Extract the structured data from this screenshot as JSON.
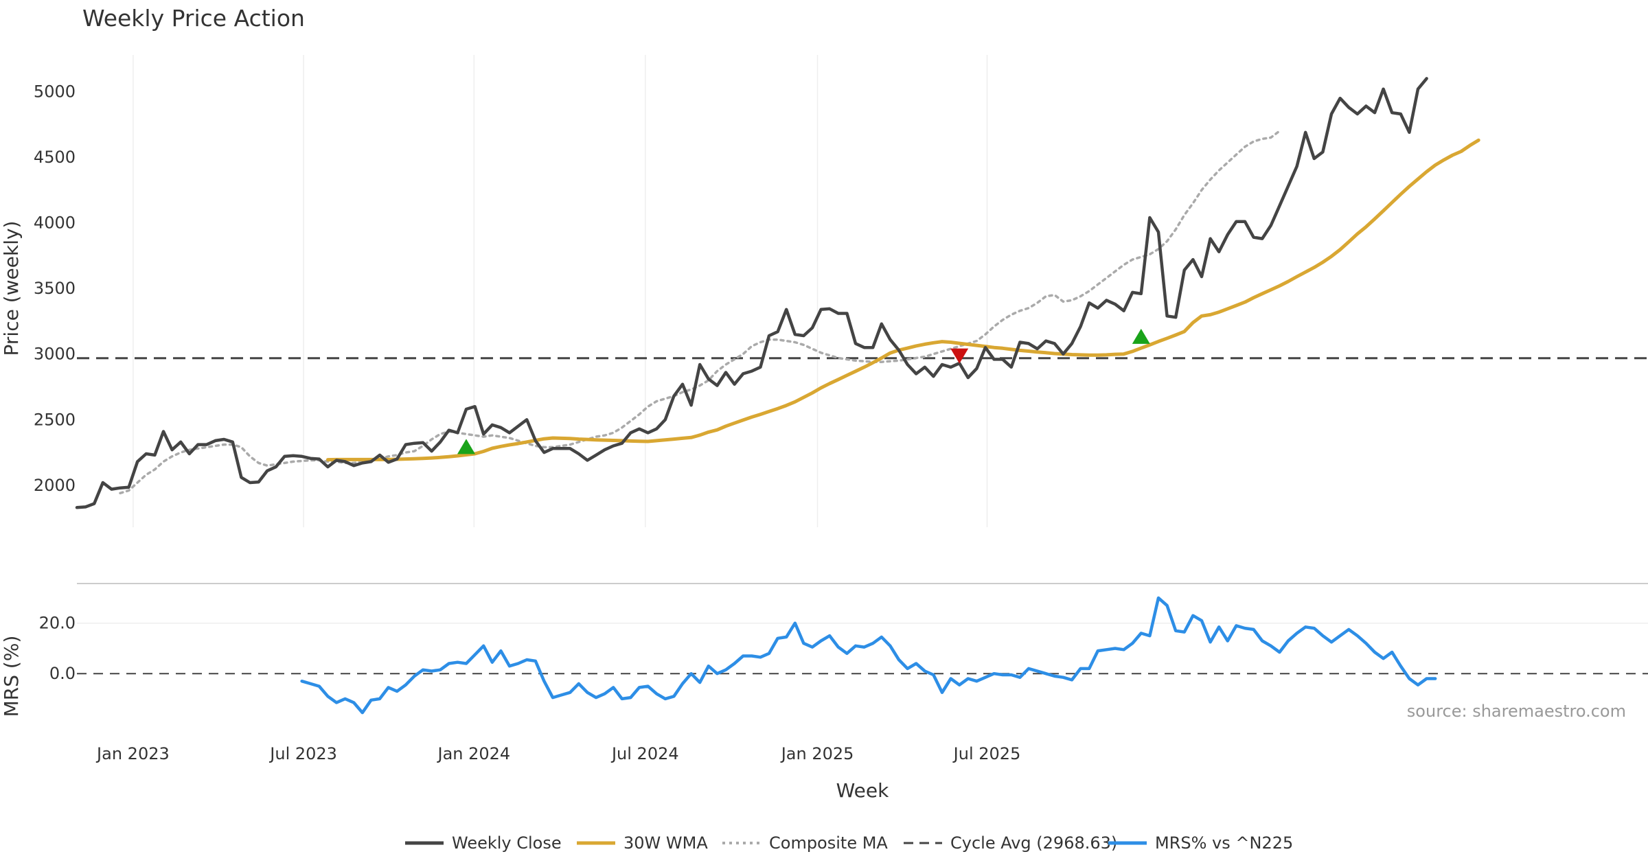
{
  "chart_data": {
    "type": "line",
    "title": "Weekly Price Action",
    "xlabel": "Week",
    "x_ticks": [
      "Jan 2023",
      "Jul 2023",
      "Jan 2024",
      "Jul 2024",
      "Jan 2025",
      "Jul 2025"
    ],
    "price_panel": {
      "ylabel": "Price (weekly)",
      "ylim": [
        1680,
        5280
      ],
      "yticks": [
        2000,
        2500,
        3000,
        3500,
        4000,
        4500,
        5000
      ],
      "cycle_avg": 2968.63,
      "series": [
        {
          "name": "Weekly Close",
          "color": "#444444",
          "start_week": 0,
          "values": [
            1830,
            1835,
            1860,
            2020,
            1970,
            1980,
            1985,
            2180,
            2240,
            2230,
            2410,
            2270,
            2330,
            2240,
            2310,
            2310,
            2340,
            2350,
            2330,
            2060,
            2020,
            2025,
            2110,
            2140,
            2220,
            2225,
            2220,
            2205,
            2200,
            2140,
            2190,
            2180,
            2150,
            2170,
            2180,
            2230,
            2175,
            2200,
            2310,
            2320,
            2325,
            2260,
            2330,
            2420,
            2400,
            2580,
            2600,
            2390,
            2460,
            2440,
            2400,
            2450,
            2500,
            2340,
            2250,
            2280,
            2280,
            2280,
            2240,
            2190,
            2230,
            2270,
            2300,
            2320,
            2400,
            2430,
            2400,
            2430,
            2500,
            2680,
            2770,
            2610,
            2920,
            2810,
            2760,
            2860,
            2770,
            2850,
            2870,
            2900,
            3140,
            3170,
            3340,
            3150,
            3140,
            3200,
            3340,
            3345,
            3310,
            3310,
            3080,
            3050,
            3050,
            3230,
            3110,
            3030,
            2920,
            2850,
            2900,
            2830,
            2920,
            2900,
            2930,
            2820,
            2890,
            3050,
            2960,
            2960,
            2900,
            3090,
            3080,
            3040,
            3100,
            3080,
            3000,
            3080,
            3210,
            3390,
            3350,
            3410,
            3380,
            3330,
            3470,
            3460,
            4040,
            3930,
            3290,
            3280,
            3640,
            3720,
            3590,
            3880,
            3780,
            3910,
            4010,
            4010,
            3890,
            3880,
            3980,
            4130,
            4280,
            4430,
            4690,
            4490,
            4540,
            4830,
            4950,
            4880,
            4830,
            4890,
            4840,
            5020,
            4840,
            4830,
            4690,
            5020,
            5100
          ]
        },
        {
          "name": "30W WMA",
          "color": "#d9a732",
          "start_week": 29,
          "values": [
            2195,
            2196,
            2196,
            2196,
            2196,
            2196,
            2196,
            2196,
            2198,
            2200,
            2202,
            2205,
            2208,
            2212,
            2218,
            2224,
            2232,
            2240,
            2258,
            2282,
            2296,
            2308,
            2318,
            2330,
            2342,
            2354,
            2360,
            2358,
            2356,
            2352,
            2349,
            2346,
            2344,
            2342,
            2340,
            2337,
            2335,
            2334,
            2340,
            2346,
            2352,
            2358,
            2364,
            2382,
            2405,
            2422,
            2450,
            2474,
            2497,
            2520,
            2540,
            2562,
            2584,
            2608,
            2636,
            2670,
            2704,
            2742,
            2775,
            2806,
            2838,
            2869,
            2900,
            2934,
            2970,
            3008,
            3030,
            3045,
            3062,
            3075,
            3086,
            3095,
            3090,
            3082,
            3074,
            3066,
            3058,
            3050,
            3044,
            3036,
            3028,
            3022,
            3016,
            3010,
            3004,
            3000,
            2996,
            2994,
            2992,
            2992,
            2994,
            2998,
            3000,
            3020,
            3045,
            3070,
            3096,
            3120,
            3145,
            3172,
            3240,
            3290,
            3300,
            3320,
            3345,
            3370,
            3396,
            3430,
            3460,
            3490,
            3520,
            3553,
            3590,
            3625,
            3660,
            3700,
            3745,
            3796,
            3855,
            3916,
            3970,
            4030,
            4092,
            4155,
            4218,
            4278,
            4334,
            4390,
            4440,
            4480,
            4516,
            4545,
            4590,
            4630
          ]
        },
        {
          "name": "Composite MA",
          "color": "#aaaaaa",
          "start_week": 5,
          "values": [
            1940,
            1960,
            2020,
            2080,
            2120,
            2180,
            2220,
            2250,
            2270,
            2280,
            2290,
            2300,
            2310,
            2310,
            2290,
            2220,
            2170,
            2150,
            2160,
            2170,
            2180,
            2185,
            2190,
            2190,
            2180,
            2180,
            2170,
            2170,
            2180,
            2190,
            2200,
            2220,
            2230,
            2250,
            2260,
            2300,
            2350,
            2390,
            2410,
            2400,
            2390,
            2380,
            2370,
            2380,
            2370,
            2360,
            2340,
            2320,
            2300,
            2290,
            2290,
            2300,
            2310,
            2330,
            2350,
            2370,
            2380,
            2400,
            2440,
            2490,
            2540,
            2600,
            2640,
            2660,
            2680,
            2710,
            2730,
            2760,
            2800,
            2870,
            2920,
            2960,
            3000,
            3060,
            3090,
            3110,
            3110,
            3100,
            3090,
            3070,
            3040,
            3010,
            2990,
            2970,
            2960,
            2950,
            2945,
            2940,
            2940,
            2945,
            2950,
            2960,
            2970,
            2980,
            3000,
            3020,
            3040,
            3060,
            3080,
            3100,
            3150,
            3210,
            3260,
            3300,
            3330,
            3350,
            3390,
            3440,
            3450,
            3400,
            3410,
            3440,
            3480,
            3530,
            3580,
            3630,
            3680,
            3720,
            3740,
            3760,
            3800,
            3860,
            3950,
            4060,
            4150,
            4250,
            4330,
            4400,
            4460,
            4520,
            4580,
            4620,
            4640,
            4650,
            4700
          ]
        },
        {
          "name": "Cycle Avg (2968.63)",
          "color": "#444444",
          "value": 2968.63
        }
      ],
      "markers": [
        {
          "type": "buy",
          "week": 45,
          "value": 2290,
          "color": "#1aa31a"
        },
        {
          "type": "sell",
          "week": 102,
          "value": 2990,
          "color": "#cc1111"
        },
        {
          "type": "buy",
          "week": 123,
          "value": 3130,
          "color": "#1aa31a"
        }
      ]
    },
    "mrs_panel": {
      "ylabel": "MRS (%)",
      "ylim": [
        -22,
        33
      ],
      "yticks": [
        0.0,
        20.0
      ],
      "ytick_labels": [
        "0.0",
        "20.0"
      ],
      "series": {
        "name": "MRS% vs ^N225",
        "color": "#2d8ee6",
        "start_week": 26,
        "values": [
          -3,
          -4,
          -5,
          -9,
          -11.5,
          -10,
          -11.5,
          -15.5,
          -10.5,
          -10,
          -5.5,
          -7,
          -4.5,
          -1,
          1.5,
          1,
          1.5,
          4,
          4.5,
          4,
          7.5,
          11,
          4.5,
          9,
          3,
          4,
          5.5,
          5,
          -3,
          -9.5,
          -8.5,
          -7.5,
          -4,
          -7.5,
          -9.5,
          -8,
          -5.5,
          -10,
          -9.5,
          -5.5,
          -5,
          -8,
          -10,
          -9,
          -4,
          0,
          -3.5,
          3,
          0,
          1.5,
          4,
          7,
          7,
          6.5,
          8,
          14,
          14.5,
          20,
          12,
          10.5,
          13,
          15,
          10.5,
          8,
          11,
          10.5,
          12,
          14.5,
          11,
          5.5,
          2,
          4,
          1,
          -0.5,
          -7.5,
          -2,
          -4.5,
          -2,
          -3,
          -1.5,
          0,
          -0.5,
          -0.5,
          -1.5,
          2,
          1,
          0,
          -1,
          -1.5,
          -2.5,
          2,
          2,
          9,
          9.5,
          10,
          9.5,
          12,
          16,
          15,
          30,
          27,
          17,
          16.5,
          23,
          21,
          12.5,
          18.5,
          13,
          19,
          18,
          17.5,
          13,
          11,
          8.5,
          13,
          16,
          18.5,
          18,
          15,
          12.5,
          15,
          17.5,
          15,
          12,
          8.5,
          6,
          8.5,
          3,
          -2,
          -4.5,
          -2,
          -2
        ]
      }
    },
    "source": "source: sharemaestro.com",
    "legend": {
      "position": "bottom-center",
      "entries": [
        "Weekly Close",
        "30W WMA",
        "Composite MA",
        "Cycle Avg (2968.63)",
        "MRS% vs ^N225"
      ]
    }
  }
}
